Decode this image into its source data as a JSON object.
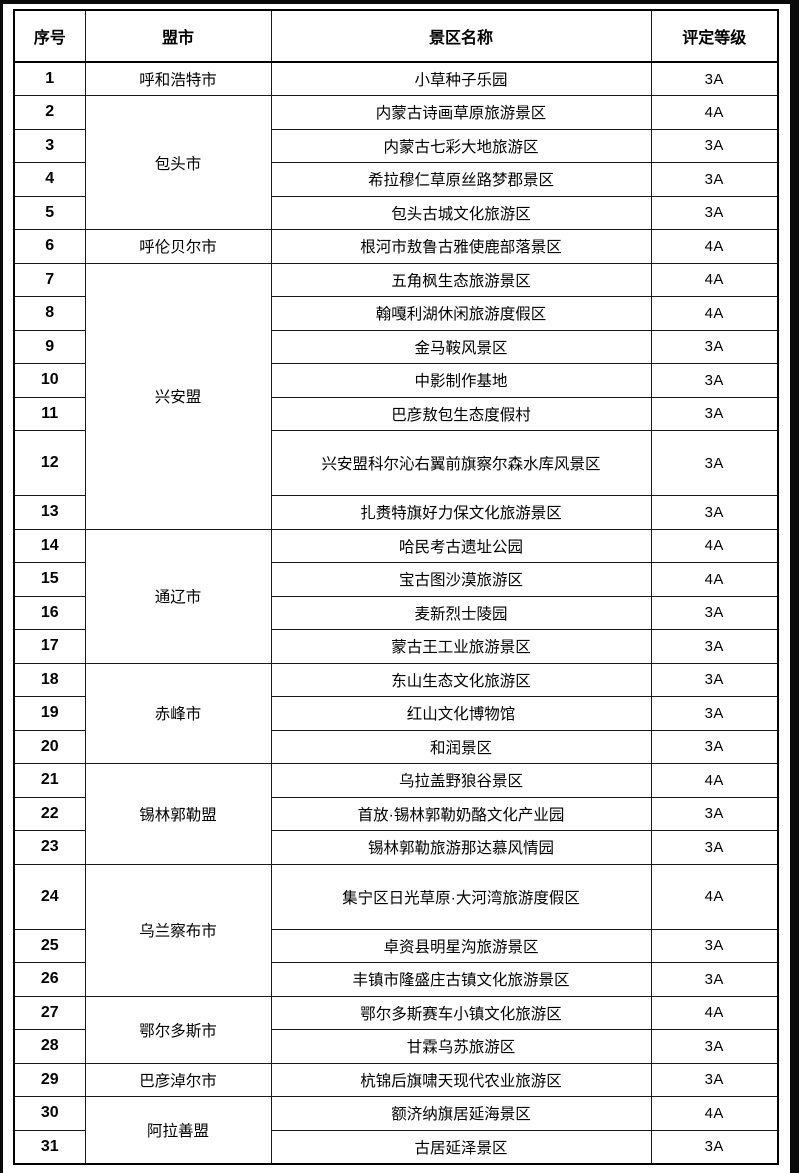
{
  "colors": {
    "background": "#ffffff",
    "text": "#000000",
    "border": "#000000",
    "edge_band": "#0a0a0a"
  },
  "table": {
    "headers": {
      "no": "序号",
      "city": "盟市",
      "name": "景区名称",
      "grade": "评定等级"
    },
    "groups": [
      {
        "city": "呼和浩特市",
        "rows": [
          {
            "no": "1",
            "name": "小草种子乐园",
            "grade": "3A"
          }
        ]
      },
      {
        "city": "包头市",
        "rows": [
          {
            "no": "2",
            "name": "内蒙古诗画草原旅游景区",
            "grade": "4A"
          },
          {
            "no": "3",
            "name": "内蒙古七彩大地旅游区",
            "grade": "3A"
          },
          {
            "no": "4",
            "name": "希拉穆仁草原丝路梦郡景区",
            "grade": "3A"
          },
          {
            "no": "5",
            "name": "包头古城文化旅游区",
            "grade": "3A"
          }
        ]
      },
      {
        "city": "呼伦贝尔市",
        "rows": [
          {
            "no": "6",
            "name": "根河市敖鲁古雅使鹿部落景区",
            "grade": "4A"
          }
        ]
      },
      {
        "city": "兴安盟",
        "rows": [
          {
            "no": "7",
            "name": "五角枫生态旅游景区",
            "grade": "4A"
          },
          {
            "no": "8",
            "name": "翰嘎利湖休闲旅游度假区",
            "grade": "4A"
          },
          {
            "no": "9",
            "name": "金马鞍风景区",
            "grade": "3A"
          },
          {
            "no": "10",
            "name": "中影制作基地",
            "grade": "3A"
          },
          {
            "no": "11",
            "name": "巴彦敖包生态度假村",
            "grade": "3A"
          },
          {
            "no": "12",
            "name": "兴安盟科尔沁右翼前旗察尔森水库风景区",
            "grade": "3A",
            "tall": true
          },
          {
            "no": "13",
            "name": "扎赉特旗好力保文化旅游景区",
            "grade": "3A"
          }
        ]
      },
      {
        "city": "通辽市",
        "rows": [
          {
            "no": "14",
            "name": "哈民考古遗址公园",
            "grade": "4A"
          },
          {
            "no": "15",
            "name": "宝古图沙漠旅游区",
            "grade": "4A"
          },
          {
            "no": "16",
            "name": "麦新烈士陵园",
            "grade": "3A"
          },
          {
            "no": "17",
            "name": "蒙古王工业旅游景区",
            "grade": "3A"
          }
        ]
      },
      {
        "city": "赤峰市",
        "rows": [
          {
            "no": "18",
            "name": "东山生态文化旅游区",
            "grade": "3A"
          },
          {
            "no": "19",
            "name": "红山文化博物馆",
            "grade": "3A"
          },
          {
            "no": "20",
            "name": "和润景区",
            "grade": "3A"
          }
        ]
      },
      {
        "city": "锡林郭勒盟",
        "rows": [
          {
            "no": "21",
            "name": "乌拉盖野狼谷景区",
            "grade": "4A"
          },
          {
            "no": "22",
            "name": "首放·锡林郭勒奶酪文化产业园",
            "grade": "3A"
          },
          {
            "no": "23",
            "name": "锡林郭勒旅游那达慕风情园",
            "grade": "3A"
          }
        ]
      },
      {
        "city": "乌兰察布市",
        "rows": [
          {
            "no": "24",
            "name": "集宁区日光草原·大河湾旅游度假区",
            "grade": "4A",
            "tall": true
          },
          {
            "no": "25",
            "name": "卓资县明星沟旅游景区",
            "grade": "3A"
          },
          {
            "no": "26",
            "name": "丰镇市隆盛庄古镇文化旅游景区",
            "grade": "3A"
          }
        ]
      },
      {
        "city": "鄂尔多斯市",
        "rows": [
          {
            "no": "27",
            "name": "鄂尔多斯赛车小镇文化旅游区",
            "grade": "4A"
          },
          {
            "no": "28",
            "name": "甘霖乌苏旅游区",
            "grade": "3A"
          }
        ]
      },
      {
        "city": "巴彦淖尔市",
        "rows": [
          {
            "no": "29",
            "name": "杭锦后旗啸天现代农业旅游区",
            "grade": "3A"
          }
        ]
      },
      {
        "city": "阿拉善盟",
        "rows": [
          {
            "no": "30",
            "name": "额济纳旗居延海景区",
            "grade": "4A"
          },
          {
            "no": "31",
            "name": "古居延泽景区",
            "grade": "3A"
          }
        ]
      }
    ]
  }
}
